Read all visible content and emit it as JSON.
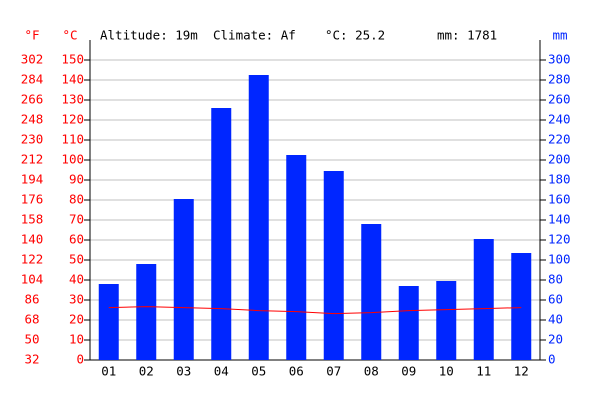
{
  "chart_data": {
    "type": "bar",
    "header": [
      "Altitude: 19m",
      "Climate: Af",
      "°C: 25.2",
      "mm: 1781"
    ],
    "axis_labels": {
      "f": "°F",
      "c": "°C",
      "mm": "mm"
    },
    "categories": [
      "01",
      "02",
      "03",
      "04",
      "05",
      "06",
      "07",
      "08",
      "09",
      "10",
      "11",
      "12"
    ],
    "series": [
      {
        "name": "mm",
        "type": "bar",
        "axis": "y2",
        "color": "#0026ff",
        "values": [
          76,
          96,
          161,
          252,
          285,
          205,
          189,
          136,
          74,
          79,
          121,
          107
        ]
      },
      {
        "name": "°C",
        "type": "line",
        "axis": "y",
        "color": "#ff0000",
        "values": [
          26.2,
          26.7,
          26.2,
          25.7,
          24.7,
          24.2,
          23.2,
          23.7,
          24.7,
          25.2,
          25.7,
          26.2
        ]
      }
    ],
    "ylim": [
      0,
      150
    ],
    "yticks": [
      0,
      10,
      20,
      30,
      40,
      50,
      60,
      70,
      80,
      90,
      100,
      110,
      120,
      130,
      140,
      150
    ],
    "flim": [
      32,
      302
    ],
    "fticks": [
      32,
      50,
      68,
      86,
      104,
      122,
      140,
      158,
      176,
      194,
      212,
      230,
      248,
      266,
      284,
      302
    ],
    "y2lim": [
      0,
      300
    ],
    "y2ticks": [
      0,
      20,
      40,
      60,
      80,
      100,
      120,
      140,
      160,
      180,
      200,
      220,
      240,
      260,
      280,
      300
    ],
    "grid": true
  }
}
